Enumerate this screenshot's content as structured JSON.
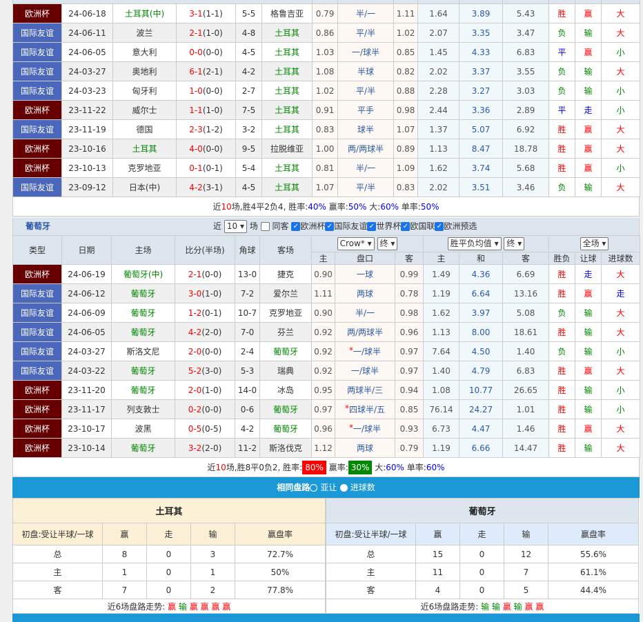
{
  "colors": {
    "euro": "#660000",
    "friendly": "#4b67bb",
    "win": "#ff0000",
    "loss": "#008800",
    "draw": "#0000ff",
    "bar": "#1a99d6"
  },
  "turkey": {
    "header": [
      "主",
      "盘口",
      "客",
      "主",
      "和",
      "客",
      "胜负",
      "让球",
      "进球数"
    ],
    "rows": [
      {
        "type": "欧洲杯",
        "date": "24-06-18",
        "home": "土耳其(中)",
        "score": "3-1",
        "half": "(1-1)",
        "corner": "5-5",
        "away": "格鲁吉亚",
        "o1": "0.79",
        "hc": "半/一",
        "o2": "1.11",
        "e1": "1.64",
        "e2": "3.89",
        "e3": "5.43",
        "r": "胜",
        "h": "赢",
        "g": "大",
        "hg": true
      },
      {
        "type": "国际友谊",
        "date": "24-06-11",
        "home": "波兰",
        "score": "2-1",
        "half": "(1-0)",
        "corner": "4-8",
        "away": "土耳其",
        "o1": "0.86",
        "hc": "平/半",
        "o2": "1.02",
        "e1": "2.07",
        "e2": "3.35",
        "e3": "3.47",
        "r": "负",
        "h": "输",
        "g": "大"
      },
      {
        "type": "国际友谊",
        "date": "24-06-05",
        "home": "意大利",
        "score": "0-0",
        "half": "(0-0)",
        "corner": "4-5",
        "away": "土耳其",
        "o1": "1.03",
        "hc": "一/球半",
        "o2": "0.85",
        "e1": "1.45",
        "e2": "4.33",
        "e3": "6.83",
        "r": "平",
        "h": "赢",
        "g": "小"
      },
      {
        "type": "国际友谊",
        "date": "24-03-27",
        "home": "奥地利",
        "score": "6-1",
        "half": "(2-1)",
        "corner": "4-2",
        "away": "土耳其",
        "o1": "1.08",
        "hc": "半球",
        "o2": "0.82",
        "e1": "2.02",
        "e2": "3.37",
        "e3": "3.55",
        "r": "负",
        "h": "输",
        "g": "大"
      },
      {
        "type": "国际友谊",
        "date": "24-03-23",
        "home": "匈牙利",
        "score": "1-0",
        "half": "(0-0)",
        "corner": "2-7",
        "away": "土耳其",
        "o1": "1.02",
        "hc": "平/半",
        "o2": "0.88",
        "e1": "2.28",
        "e2": "3.27",
        "e3": "3.03",
        "r": "负",
        "h": "输",
        "g": "小"
      },
      {
        "type": "欧洲杯",
        "date": "23-11-22",
        "home": "威尔士",
        "score": "1-1",
        "half": "(1-0)",
        "corner": "7-5",
        "away": "土耳其",
        "o1": "0.91",
        "hc": "平手",
        "o2": "0.98",
        "e1": "2.44",
        "e2": "3.36",
        "e3": "2.89",
        "r": "平",
        "h": "走",
        "g": "小"
      },
      {
        "type": "国际友谊",
        "date": "23-11-19",
        "home": "德国",
        "score": "2-3",
        "half": "(1-2)",
        "corner": "3-2",
        "away": "土耳其",
        "o1": "0.83",
        "hc": "球半",
        "o2": "1.07",
        "e1": "1.37",
        "e2": "5.07",
        "e3": "6.92",
        "r": "胜",
        "h": "赢",
        "g": "大"
      },
      {
        "type": "欧洲杯",
        "date": "23-10-16",
        "home": "土耳其",
        "score": "4-0",
        "half": "(0-0)",
        "corner": "9-5",
        "away": "拉脱维亚",
        "o1": "1.00",
        "hc": "两/两球半",
        "o2": "0.89",
        "e1": "1.13",
        "e2": "8.47",
        "e3": "18.78",
        "r": "胜",
        "h": "赢",
        "g": "大",
        "hg": true
      },
      {
        "type": "欧洲杯",
        "date": "23-10-13",
        "home": "克罗地亚",
        "score": "0-1",
        "half": "(0-1)",
        "corner": "5-4",
        "away": "土耳其",
        "o1": "0.81",
        "hc": "半/一",
        "o2": "1.09",
        "e1": "1.62",
        "e2": "3.74",
        "e3": "5.68",
        "r": "胜",
        "h": "赢",
        "g": "小"
      },
      {
        "type": "国际友谊",
        "date": "23-09-12",
        "home": "日本(中)",
        "score": "4-2",
        "half": "(3-1)",
        "corner": "4-5",
        "away": "土耳其",
        "o1": "1.07",
        "hc": "平/半",
        "o2": "0.83",
        "e1": "2.02",
        "e2": "3.51",
        "e3": "3.46",
        "r": "负",
        "h": "输",
        "g": "大"
      }
    ],
    "summary": {
      "a": "近",
      "n": "10",
      "b": "场,胜",
      "w": "4",
      "c": "平",
      "d": "2",
      "e": "负",
      "l": "4",
      ", 胜率:": "",
      "wr_label": ", 胜率:",
      "wr": "40%",
      "hr_label": " 赢率:",
      "hr": "50%",
      "big_label": " 大:",
      "big": "60%",
      "odd_label": " 单率:",
      "odd": "50%"
    }
  },
  "portugal": {
    "name": "葡萄牙",
    "filter": {
      "near": "近",
      "count": "10",
      "unit": "场",
      "same": "同客",
      "opts": [
        "欧洲杯",
        "国际友谊",
        "世界杯",
        "欧国联",
        "欧洲预选"
      ]
    },
    "cols": [
      "类型",
      "日期",
      "主场",
      "比分(半场)",
      "角球",
      "客场"
    ],
    "selects": {
      "company": "Crow*",
      "final1": "终",
      "avg": "胜平负均值",
      "final2": "终",
      "scope": "全场"
    },
    "header": [
      "主",
      "盘口",
      "客",
      "主",
      "和",
      "客",
      "胜负",
      "让球",
      "进球数"
    ],
    "rows": [
      {
        "type": "欧洲杯",
        "date": "24-06-19",
        "home": "葡萄牙(中)",
        "score": "2-1",
        "half": "(0-0)",
        "corner": "13-0",
        "away": "捷克",
        "o1": "0.90",
        "hc": "一球",
        "o2": "0.99",
        "e1": "1.49",
        "e2": "4.36",
        "e3": "6.69",
        "r": "胜",
        "h": "走",
        "g": "大",
        "hg": true
      },
      {
        "type": "国际友谊",
        "date": "24-06-12",
        "home": "葡萄牙",
        "score": "3-0",
        "half": "(1-0)",
        "corner": "7-2",
        "away": "爱尔兰",
        "o1": "1.11",
        "hc": "两球",
        "o2": "0.78",
        "e1": "1.19",
        "e2": "6.64",
        "e3": "13.16",
        "r": "胜",
        "h": "赢",
        "g": "走",
        "hg": true
      },
      {
        "type": "国际友谊",
        "date": "24-06-09",
        "home": "葡萄牙",
        "score": "1-2",
        "half": "(0-1)",
        "corner": "10-7",
        "away": "克罗地亚",
        "o1": "0.90",
        "hc": "半/一",
        "o2": "0.98",
        "e1": "1.62",
        "e2": "3.97",
        "e3": "5.08",
        "r": "负",
        "h": "输",
        "g": "大",
        "hg": true
      },
      {
        "type": "国际友谊",
        "date": "24-06-05",
        "home": "葡萄牙",
        "score": "4-2",
        "half": "(2-0)",
        "corner": "7-0",
        "away": "芬兰",
        "o1": "0.92",
        "hc": "两/两球半",
        "o2": "0.96",
        "e1": "1.13",
        "e2": "8.00",
        "e3": "18.61",
        "r": "胜",
        "h": "输",
        "g": "大",
        "hg": true
      },
      {
        "type": "国际友谊",
        "date": "24-03-27",
        "home": "斯洛文尼",
        "score": "2-0",
        "half": "(0-0)",
        "corner": "2-4",
        "away": "葡萄牙",
        "o1": "0.92",
        "hc": "*一/球半",
        "o2": "0.97",
        "e1": "7.64",
        "e2": "4.50",
        "e3": "1.40",
        "r": "负",
        "h": "输",
        "g": "小"
      },
      {
        "type": "国际友谊",
        "date": "24-03-22",
        "home": "葡萄牙",
        "score": "5-2",
        "half": "(3-0)",
        "corner": "5-3",
        "away": "瑞典",
        "o1": "0.92",
        "hc": "一/球半",
        "o2": "0.97",
        "e1": "1.40",
        "e2": "4.79",
        "e3": "6.83",
        "r": "胜",
        "h": "赢",
        "g": "大",
        "hg": true
      },
      {
        "type": "欧洲杯",
        "date": "23-11-20",
        "home": "葡萄牙",
        "score": "2-0",
        "half": "(1-0)",
        "corner": "14-0",
        "away": "冰岛",
        "o1": "0.95",
        "hc": "两球半/三",
        "o2": "0.94",
        "e1": "1.08",
        "e2": "10.77",
        "e3": "26.65",
        "r": "胜",
        "h": "输",
        "g": "小",
        "hg": true
      },
      {
        "type": "欧洲杯",
        "date": "23-11-17",
        "home": "列支敦士",
        "score": "0-2",
        "half": "(0-0)",
        "corner": "0-6",
        "away": "葡萄牙",
        "o1": "0.97",
        "hc": "*四球半/五",
        "o2": "0.85",
        "e1": "76.14",
        "e2": "24.27",
        "e3": "1.01",
        "r": "胜",
        "h": "输",
        "g": "小"
      },
      {
        "type": "欧洲杯",
        "date": "23-10-17",
        "home": "波黑",
        "score": "0-5",
        "half": "(0-5)",
        "corner": "4-2",
        "away": "葡萄牙",
        "o1": "0.96",
        "hc": "*一/球半",
        "o2": "0.93",
        "e1": "6.73",
        "e2": "4.47",
        "e3": "1.46",
        "r": "胜",
        "h": "赢",
        "g": "大"
      },
      {
        "type": "欧洲杯",
        "date": "23-10-14",
        "home": "葡萄牙",
        "score": "3-2",
        "half": "(2-0)",
        "corner": "11-2",
        "away": "斯洛伐克",
        "o1": "1.12",
        "hc": "两球",
        "o2": "0.79",
        "e1": "1.19",
        "e2": "6.66",
        "e3": "14.47",
        "r": "胜",
        "h": "输",
        "g": "大",
        "hg": true
      }
    ],
    "summary": {
      "a": "近",
      "n": "10",
      "b": "场,胜8平0负2, 胜率:",
      "wr": "80%",
      "hr_label": " 赢率:",
      "hr": "30%",
      "big_label": " 大:",
      "big": "60%",
      "odd_label": " 单率:",
      "odd": "60%"
    }
  },
  "same": {
    "title": "相同盘路",
    "opt1": "亚让",
    "opt2": "进球数",
    "cols": [
      "初盘:受让半球/一球",
      "赢",
      "走",
      "输",
      "赢盘率"
    ],
    "left": {
      "team": "土耳其",
      "rows": [
        [
          "总",
          "8",
          "0",
          "3",
          "72.7%"
        ],
        [
          "主",
          "1",
          "0",
          "1",
          "50%"
        ],
        [
          "客",
          "7",
          "0",
          "2",
          "77.8%"
        ]
      ],
      "trend_label": "近6场盘路走势:",
      "trend": [
        "赢",
        "输",
        "赢",
        "赢",
        "赢",
        "赢"
      ]
    },
    "right": {
      "team": "葡萄牙",
      "rows": [
        [
          "总",
          "15",
          "0",
          "12",
          "55.6%"
        ],
        [
          "主",
          "11",
          "0",
          "7",
          "61.1%"
        ],
        [
          "客",
          "4",
          "0",
          "5",
          "44.4%"
        ]
      ],
      "trend_label": "近6场盘路走势:",
      "trend": [
        "输",
        "输",
        "赢",
        "输",
        "赢",
        "赢"
      ]
    }
  }
}
